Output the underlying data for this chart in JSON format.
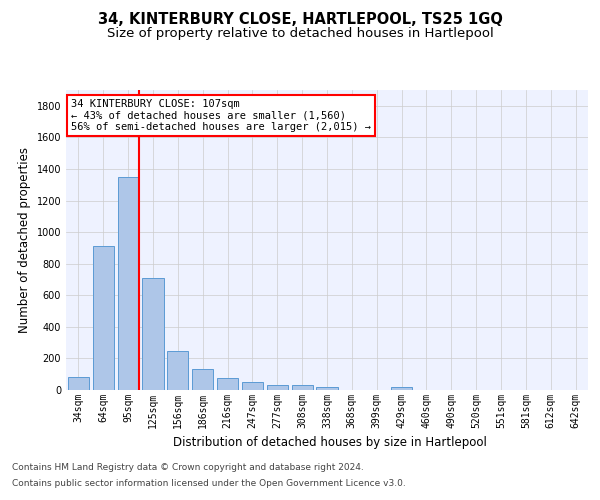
{
  "title": "34, KINTERBURY CLOSE, HARTLEPOOL, TS25 1GQ",
  "subtitle": "Size of property relative to detached houses in Hartlepool",
  "xlabel": "Distribution of detached houses by size in Hartlepool",
  "ylabel": "Number of detached properties",
  "bar_color": "#aec6e8",
  "bar_edge_color": "#5b9bd5",
  "vline_color": "red",
  "annotation_text": "34 KINTERBURY CLOSE: 107sqm\n← 43% of detached houses are smaller (1,560)\n56% of semi-detached houses are larger (2,015) →",
  "annotation_box_color": "white",
  "annotation_box_edge_color": "red",
  "categories": [
    "34sqm",
    "64sqm",
    "95sqm",
    "125sqm",
    "156sqm",
    "186sqm",
    "216sqm",
    "247sqm",
    "277sqm",
    "308sqm",
    "338sqm",
    "368sqm",
    "399sqm",
    "429sqm",
    "460sqm",
    "490sqm",
    "520sqm",
    "551sqm",
    "581sqm",
    "612sqm",
    "642sqm"
  ],
  "values": [
    80,
    910,
    1350,
    710,
    245,
    135,
    78,
    50,
    30,
    30,
    18,
    0,
    0,
    20,
    0,
    0,
    0,
    0,
    0,
    0,
    0
  ],
  "ylim": [
    0,
    1900
  ],
  "yticks": [
    0,
    200,
    400,
    600,
    800,
    1000,
    1200,
    1400,
    1600,
    1800
  ],
  "background_color": "#eef2ff",
  "grid_color": "#cccccc",
  "footer_line1": "Contains HM Land Registry data © Crown copyright and database right 2024.",
  "footer_line2": "Contains public sector information licensed under the Open Government Licence v3.0.",
  "title_fontsize": 10.5,
  "subtitle_fontsize": 9.5,
  "label_fontsize": 8.5,
  "tick_fontsize": 7,
  "footer_fontsize": 6.5,
  "annotation_fontsize": 7.5
}
